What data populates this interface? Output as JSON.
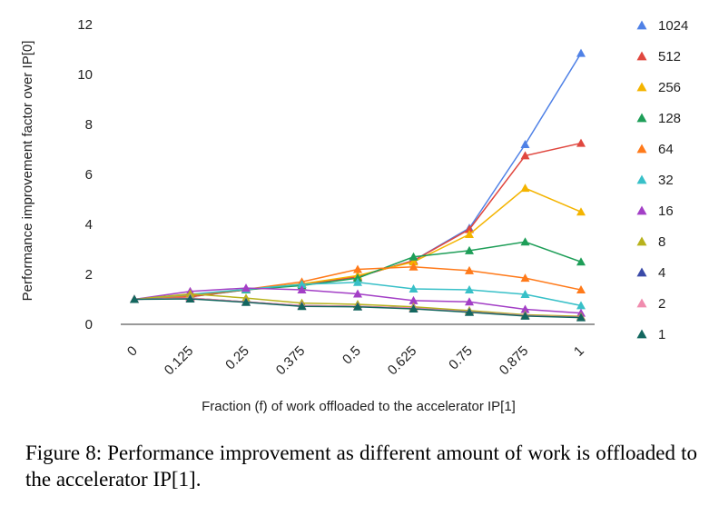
{
  "caption": "Figure 8: Performance improvement as different amount of work is offloaded to the accelerator IP[1].",
  "chart_data": {
    "type": "line",
    "title": "",
    "xlabel": "Fraction (f) of work offloaded to the accelerator IP[1]",
    "ylabel": "Performance improvement factor over IP[0]",
    "categories": [
      "0",
      "0.125",
      "0.25",
      "0.375",
      "0.5",
      "0.625",
      "0.75",
      "0.875",
      "1"
    ],
    "yticks": [
      "0",
      "2",
      "4",
      "6",
      "8",
      "10",
      "12"
    ],
    "ylim": [
      0,
      12
    ],
    "grid": false,
    "legend": "right",
    "marker": "triangle",
    "series": [
      {
        "name": "1024",
        "color": "#4f81e6",
        "values": [
          1.0,
          1.1,
          1.38,
          1.6,
          1.9,
          2.55,
          3.85,
          7.2,
          10.85
        ]
      },
      {
        "name": "512",
        "color": "#e0473f",
        "values": [
          1.0,
          1.1,
          1.38,
          1.6,
          1.9,
          2.55,
          3.8,
          6.75,
          7.25
        ]
      },
      {
        "name": "256",
        "color": "#f4b400",
        "values": [
          1.0,
          1.15,
          1.4,
          1.62,
          1.95,
          2.5,
          3.6,
          5.45,
          4.5
        ]
      },
      {
        "name": "128",
        "color": "#1e9e58",
        "values": [
          1.0,
          1.15,
          1.38,
          1.55,
          1.85,
          2.7,
          2.95,
          3.3,
          2.5
        ]
      },
      {
        "name": "64",
        "color": "#ff7a1a",
        "values": [
          1.0,
          1.15,
          1.4,
          1.7,
          2.2,
          2.3,
          2.15,
          1.85,
          1.38
        ]
      },
      {
        "name": "32",
        "color": "#38c0c8",
        "values": [
          1.0,
          1.2,
          1.4,
          1.6,
          1.68,
          1.42,
          1.38,
          1.2,
          0.75
        ]
      },
      {
        "name": "16",
        "color": "#a33fc6",
        "values": [
          1.0,
          1.32,
          1.45,
          1.38,
          1.22,
          0.95,
          0.9,
          0.6,
          0.45
        ]
      },
      {
        "name": "8",
        "color": "#b8b21c",
        "values": [
          1.0,
          1.22,
          1.05,
          0.85,
          0.8,
          0.7,
          0.55,
          0.38,
          0.32
        ]
      },
      {
        "name": "4",
        "color": "#3a4aa8",
        "values": [
          1.0,
          1.05,
          0.9,
          0.75,
          0.72,
          0.65,
          0.5,
          0.35,
          0.28
        ]
      },
      {
        "name": "2",
        "color": "#f08cae",
        "values": [
          1.0,
          1.05,
          0.9,
          0.75,
          0.72,
          0.65,
          0.5,
          0.35,
          0.28
        ]
      },
      {
        "name": "1",
        "color": "#13675f",
        "values": [
          1.0,
          1.02,
          0.88,
          0.72,
          0.7,
          0.62,
          0.48,
          0.33,
          0.27
        ]
      }
    ]
  }
}
